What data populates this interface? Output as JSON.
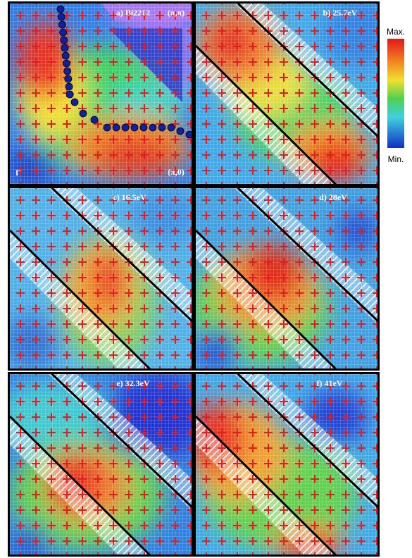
{
  "panels": [
    {
      "label": "a) Bi2212",
      "corner_labels": [
        "(π,π)",
        "(π,0)",
        "Γ"
      ]
    },
    {
      "label": "b) 25.7eV"
    },
    {
      "label": "c) 16.5eV"
    },
    {
      "label": "d) 28eV"
    },
    {
      "label": "e) 32.3eV"
    },
    {
      "label": "f) 41eV"
    }
  ],
  "colorbar": {
    "max": "Max.",
    "min": "Min."
  }
}
